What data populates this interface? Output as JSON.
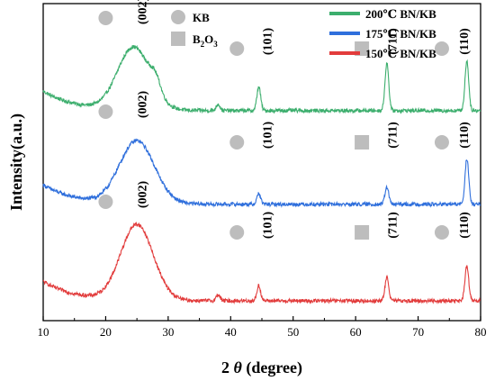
{
  "chart_data": {
    "type": "line",
    "xlabel": "2 θ (degree)",
    "xlabel_parts": {
      "prefix": "2 ",
      "italic": "θ",
      "suffix": " (degree)"
    },
    "ylabel": "Intensity(a.u.)",
    "xlim": [
      10,
      80
    ],
    "xticks": [
      10,
      20,
      30,
      40,
      50,
      60,
      70,
      80
    ],
    "yticks_shown": false,
    "legend": {
      "placement": "top-right",
      "markers": [
        {
          "name": "KB",
          "shape": "circle",
          "color": "#bdbdbd"
        },
        {
          "name": "B2O3",
          "name_main": "B",
          "sub1": "2",
          "mid": "O",
          "sub2": "3",
          "shape": "square",
          "color": "#bdbdbd"
        }
      ],
      "lines": [
        {
          "name": "200℃ BN/KB",
          "color": "#3cae6d"
        },
        {
          "name": "175℃ BN/KB",
          "color": "#2f6fdc"
        },
        {
          "name": "150℃ BN/KB",
          "color": "#e23c3c"
        }
      ]
    },
    "series": [
      {
        "name": "200℃ BN/KB",
        "color": "#3cae6d",
        "baseline": 0.36,
        "noise": 0.035,
        "peaks": [
          {
            "x": 24.5,
            "height": 0.58,
            "width": 2.6
          },
          {
            "x": 28.0,
            "height": 0.12,
            "width": 0.8
          },
          {
            "x": 38.0,
            "height": 0.06,
            "width": 0.3
          },
          {
            "x": 44.5,
            "height": 0.22,
            "width": 0.3
          },
          {
            "x": 65.0,
            "height": 0.44,
            "width": 0.3
          },
          {
            "x": 77.8,
            "height": 0.46,
            "width": 0.3
          }
        ],
        "annotations": [
          {
            "label": "(002)",
            "x": 26.5,
            "marker": "circle",
            "marker_x": 20.0,
            "marker_label_level": 1.62
          },
          {
            "label": "(101)",
            "x": 46.5,
            "marker": "circle",
            "marker_x": 41.0,
            "marker_label_level": 1.0
          },
          {
            "label": "(711)",
            "x": 66.5,
            "marker": "square",
            "marker_x": 61.0,
            "marker_label_level": 1.0
          },
          {
            "label": "(110)",
            "x": 78.0,
            "marker": "circle",
            "marker_x": 73.8,
            "marker_label_level": 1.0
          }
        ]
      },
      {
        "name": "175℃ BN/KB",
        "color": "#2f6fdc",
        "baseline": 0.36,
        "noise": 0.035,
        "peaks": [
          {
            "x": 25.0,
            "height": 0.58,
            "width": 2.8
          },
          {
            "x": 44.5,
            "height": 0.1,
            "width": 0.3
          },
          {
            "x": 65.0,
            "height": 0.16,
            "width": 0.3
          },
          {
            "x": 77.8,
            "height": 0.42,
            "width": 0.3
          }
        ],
        "annotations": [
          {
            "label": "(002)",
            "x": 26.5,
            "marker": "circle",
            "marker_x": 20.0,
            "marker_label_level": 1.0
          },
          {
            "label": "(101)",
            "x": 46.5,
            "marker": "circle",
            "marker_x": 41.0,
            "marker_label_level": 1.0
          },
          {
            "label": "(711)",
            "x": 66.5,
            "marker": "square",
            "marker_x": 61.0,
            "marker_label_level": 1.0
          },
          {
            "label": "(110)",
            "x": 78.0,
            "marker": "circle",
            "marker_x": 73.8,
            "marker_label_level": 1.0
          }
        ]
      },
      {
        "name": "150℃ BN/KB",
        "color": "#e23c3c",
        "baseline": 0.3,
        "noise": 0.035,
        "peaks": [
          {
            "x": 25.0,
            "height": 0.7,
            "width": 2.6
          },
          {
            "x": 38.0,
            "height": 0.06,
            "width": 0.3
          },
          {
            "x": 44.5,
            "height": 0.14,
            "width": 0.3
          },
          {
            "x": 65.0,
            "height": 0.22,
            "width": 0.3
          },
          {
            "x": 77.8,
            "height": 0.32,
            "width": 0.3
          }
        ],
        "annotations": [
          {
            "label": "(002)",
            "x": 26.5,
            "marker": "circle",
            "marker_x": 20.0,
            "marker_label_level": 1.0
          },
          {
            "label": "(101)",
            "x": 46.5,
            "marker": "circle",
            "marker_x": 41.0,
            "marker_label_level": 1.0
          },
          {
            "label": "(711)",
            "x": 66.5,
            "marker": "square",
            "marker_x": 61.0,
            "marker_label_level": 1.0
          },
          {
            "label": "(110)",
            "x": 78.0,
            "marker": "circle",
            "marker_x": 73.8,
            "marker_label_level": 1.0
          }
        ]
      }
    ]
  }
}
